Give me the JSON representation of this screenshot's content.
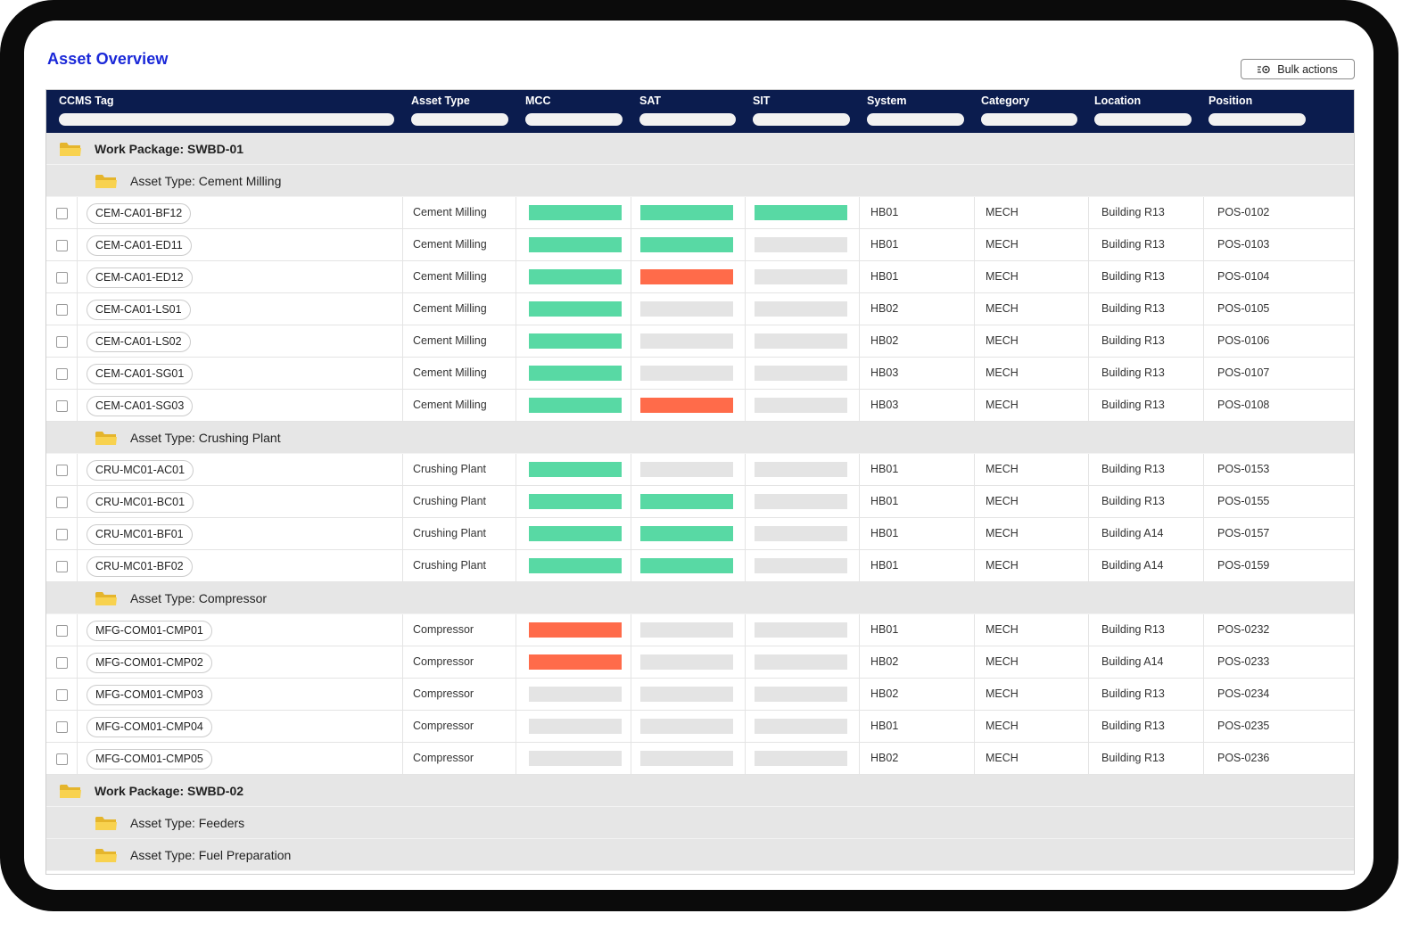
{
  "page": {
    "title": "Asset Overview",
    "bulk_actions_label": "Bulk actions"
  },
  "columns": [
    "CCMS Tag",
    "Asset Type",
    "MCC",
    "SAT",
    "SIT",
    "System",
    "Category",
    "Location",
    "Position"
  ],
  "status_colors": {
    "complete": "#58d9a4",
    "failed": "#ff6b4a",
    "pending": "#e4e4e4"
  },
  "work_packages": [
    {
      "label": "Work Package: SWBD-01",
      "asset_types": [
        {
          "label": "Asset Type: Cement Milling",
          "rows": [
            {
              "tag": "CEM-CA01-BF12",
              "asset_type": "Cement Milling",
              "mcc": "complete",
              "sat": "complete",
              "sit": "complete",
              "system": "HB01",
              "category": "MECH",
              "location": "Building R13",
              "position": "POS-0102"
            },
            {
              "tag": "CEM-CA01-ED11",
              "asset_type": "Cement Milling",
              "mcc": "complete",
              "sat": "complete",
              "sit": "pending",
              "system": "HB01",
              "category": "MECH",
              "location": "Building R13",
              "position": "POS-0103"
            },
            {
              "tag": "CEM-CA01-ED12",
              "asset_type": "Cement Milling",
              "mcc": "complete",
              "sat": "failed",
              "sit": "pending",
              "system": "HB01",
              "category": "MECH",
              "location": "Building R13",
              "position": "POS-0104"
            },
            {
              "tag": "CEM-CA01-LS01",
              "asset_type": "Cement Milling",
              "mcc": "complete",
              "sat": "pending",
              "sit": "pending",
              "system": "HB02",
              "category": "MECH",
              "location": "Building R13",
              "position": "POS-0105"
            },
            {
              "tag": "CEM-CA01-LS02",
              "asset_type": "Cement Milling",
              "mcc": "complete",
              "sat": "pending",
              "sit": "pending",
              "system": "HB02",
              "category": "MECH",
              "location": "Building R13",
              "position": "POS-0106"
            },
            {
              "tag": "CEM-CA01-SG01",
              "asset_type": "Cement Milling",
              "mcc": "complete",
              "sat": "pending",
              "sit": "pending",
              "system": "HB03",
              "category": "MECH",
              "location": "Building R13",
              "position": "POS-0107"
            },
            {
              "tag": "CEM-CA01-SG03",
              "asset_type": "Cement Milling",
              "mcc": "complete",
              "sat": "failed",
              "sit": "pending",
              "system": "HB03",
              "category": "MECH",
              "location": "Building R13",
              "position": "POS-0108"
            }
          ]
        },
        {
          "label": "Asset Type: Crushing Plant",
          "rows": [
            {
              "tag": "CRU-MC01-AC01",
              "asset_type": "Crushing Plant",
              "mcc": "complete",
              "sat": "pending",
              "sit": "pending",
              "system": "HB01",
              "category": "MECH",
              "location": "Building R13",
              "position": "POS-0153"
            },
            {
              "tag": "CRU-MC01-BC01",
              "asset_type": "Crushing Plant",
              "mcc": "complete",
              "sat": "complete",
              "sit": "pending",
              "system": "HB01",
              "category": "MECH",
              "location": "Building R13",
              "position": "POS-0155"
            },
            {
              "tag": "CRU-MC01-BF01",
              "asset_type": "Crushing Plant",
              "mcc": "complete",
              "sat": "complete",
              "sit": "pending",
              "system": "HB01",
              "category": "MECH",
              "location": "Building A14",
              "position": "POS-0157"
            },
            {
              "tag": "CRU-MC01-BF02",
              "asset_type": "Crushing Plant",
              "mcc": "complete",
              "sat": "complete",
              "sit": "pending",
              "system": "HB01",
              "category": "MECH",
              "location": "Building A14",
              "position": "POS-0159"
            }
          ]
        },
        {
          "label": "Asset Type: Compressor",
          "rows": [
            {
              "tag": "MFG-COM01-CMP01",
              "asset_type": "Compressor",
              "mcc": "failed",
              "sat": "pending",
              "sit": "pending",
              "system": "HB01",
              "category": "MECH",
              "location": "Building R13",
              "position": "POS-0232"
            },
            {
              "tag": "MFG-COM01-CMP02",
              "asset_type": "Compressor",
              "mcc": "failed",
              "sat": "pending",
              "sit": "pending",
              "system": "HB02",
              "category": "MECH",
              "location": "Building A14",
              "position": "POS-0233"
            },
            {
              "tag": "MFG-COM01-CMP03",
              "asset_type": "Compressor",
              "mcc": "pending",
              "sat": "pending",
              "sit": "pending",
              "system": "HB02",
              "category": "MECH",
              "location": "Building R13",
              "position": "POS-0234"
            },
            {
              "tag": "MFG-COM01-CMP04",
              "asset_type": "Compressor",
              "mcc": "pending",
              "sat": "pending",
              "sit": "pending",
              "system": "HB01",
              "category": "MECH",
              "location": "Building R13",
              "position": "POS-0235"
            },
            {
              "tag": "MFG-COM01-CMP05",
              "asset_type": "Compressor",
              "mcc": "pending",
              "sat": "pending",
              "sit": "pending",
              "system": "HB02",
              "category": "MECH",
              "location": "Building R13",
              "position": "POS-0236"
            }
          ]
        }
      ]
    },
    {
      "label": "Work Package: SWBD-02",
      "asset_types": [
        {
          "label": "Asset Type: Feeders",
          "rows": []
        },
        {
          "label": "Asset Type: Fuel Preparation",
          "rows": []
        }
      ]
    }
  ]
}
